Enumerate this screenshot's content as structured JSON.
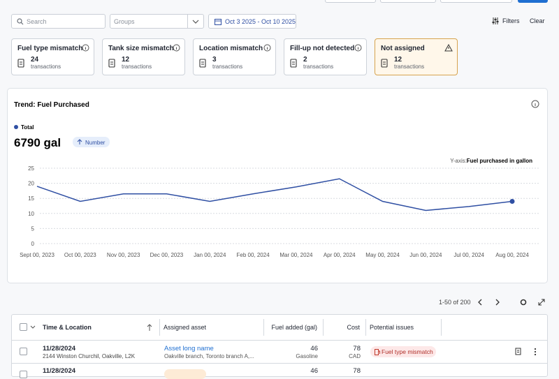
{
  "toolbar": {
    "search": "Search",
    "groups": "Groups",
    "date_range": "Oct 3 2025 - Oct 10 2025",
    "filters": "Filters",
    "clear": "Clear"
  },
  "cards": [
    {
      "title": "Fuel type mismatch",
      "count": "24",
      "unit": "transactions"
    },
    {
      "title": "Tank size mismatch",
      "count": "12",
      "unit": "transactions"
    },
    {
      "title": "Location mismatch",
      "count": "3",
      "unit": "transactions"
    },
    {
      "title": "Fill-up not detected",
      "count": "2",
      "unit": "transactions"
    },
    {
      "title": "Not assigned",
      "count": "12",
      "unit": "transactions"
    }
  ],
  "chart_data": {
    "type": "line",
    "title": "Trend: Fuel Purchased",
    "total": "6790 gal",
    "badge": "Number",
    "y_axis_prefix": "Y-axis:",
    "y_axis_label": "Fuel purchased in gallon",
    "categories": [
      "Sept 00, 2023",
      "Oct 00, 2023",
      "Nov 00, 2023",
      "Dec 00, 2023",
      "Jan 00, 2024",
      "Feb 00, 2024",
      "Mar 00, 2024",
      "Apr 00, 2024",
      "May 00, 2024",
      "Jun 00, 2024",
      "Jul 00, 2024",
      "Aug 00, 2024"
    ],
    "series": [
      {
        "name": "Total",
        "color": "#2f4fa3",
        "values": [
          19,
          14,
          16.5,
          16.5,
          14,
          16.5,
          18.8,
          21.5,
          14,
          11,
          12.3,
          14
        ]
      }
    ],
    "ylim": [
      0,
      25
    ],
    "yticks": [
      0,
      5,
      10,
      15,
      20,
      25
    ],
    "grid": true
  },
  "pagination": "1-50 of 200",
  "table": {
    "headers": [
      "Time & Location",
      "Assigned asset",
      "Fuel added (gal)",
      "Cost",
      "Potential issues"
    ],
    "rows": [
      {
        "date": "11/28/2024",
        "address": "2144 Winston Churchil, Oakville, L2K",
        "asset": "Asset long name",
        "branch": "Oakville branch, Toronto branch A,...",
        "fuel": "46",
        "fuel_type": "Gasoline",
        "cost": "78",
        "currency": "CAD",
        "issue": "Fuel type mismatch"
      },
      {
        "date": "11/28/2024",
        "fuel": "46",
        "cost": "78"
      }
    ]
  }
}
